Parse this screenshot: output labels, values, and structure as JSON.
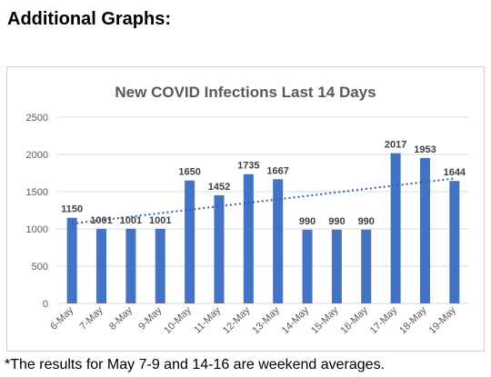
{
  "heading": "Additional Graphs:",
  "footnote": "*The results for May 7-9 and 14-16 are weekend averages.",
  "chart_data": {
    "type": "bar",
    "title": "New COVID Infections Last 14 Days",
    "xlabel": "",
    "ylabel": "",
    "categories": [
      "6-May",
      "7-May",
      "8-May",
      "9-May",
      "10-May",
      "11-May",
      "12-May",
      "13-May",
      "14-May",
      "15-May",
      "16-May",
      "17-May",
      "18-May",
      "19-May"
    ],
    "values": [
      1150,
      1001,
      1001,
      1001,
      1650,
      1452,
      1735,
      1667,
      990,
      990,
      990,
      2017,
      1953,
      1644
    ],
    "data_labels": [
      "1150",
      "1001",
      "1001",
      "1001",
      "1650",
      "1452",
      "1735",
      "1667",
      "990",
      "990",
      "990",
      "2017",
      "1953",
      "1644"
    ],
    "ylim": [
      0,
      2500
    ],
    "yticks": [
      0,
      500,
      1000,
      1500,
      2000,
      2500
    ],
    "ytick_labels": [
      "0",
      "500",
      "1000",
      "1500",
      "2000",
      "2500"
    ],
    "grid": true,
    "legend": "none",
    "trendline": {
      "type": "linear",
      "style": "dotted"
    },
    "colors": {
      "bar": "#4472C4",
      "trendline": "#2E5FAF",
      "grid": "#D9D9D9",
      "title": "#595959",
      "tick_label": "#595959",
      "data_label": "#404040"
    }
  }
}
